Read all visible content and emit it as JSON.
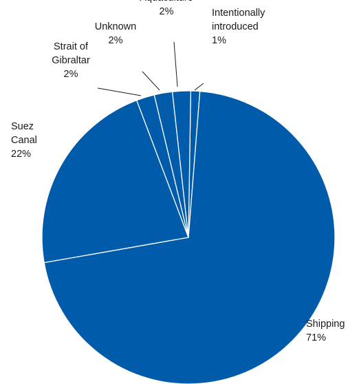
{
  "chart_data": {
    "type": "pie",
    "color": "#005BAA",
    "slices": [
      {
        "name": "Intentionally introduced",
        "lines": [
          "Intentionally",
          "introduced",
          "1%"
        ],
        "value": 1
      },
      {
        "name": "Shipping",
        "lines": [
          "Shipping",
          "71%"
        ],
        "value": 71
      },
      {
        "name": "Suez Canal",
        "lines": [
          "Suez",
          "Canal",
          "22%"
        ],
        "value": 22
      },
      {
        "name": "Strait of Gibraltar",
        "lines": [
          "Strait of",
          "Gibraltar",
          "2%"
        ],
        "value": 2
      },
      {
        "name": "Unknown",
        "lines": [
          "Unknown",
          "2%"
        ],
        "value": 2
      },
      {
        "name": "Aquaculture",
        "lines": [
          "Aquaculture",
          "2%"
        ],
        "value": 2
      }
    ]
  }
}
